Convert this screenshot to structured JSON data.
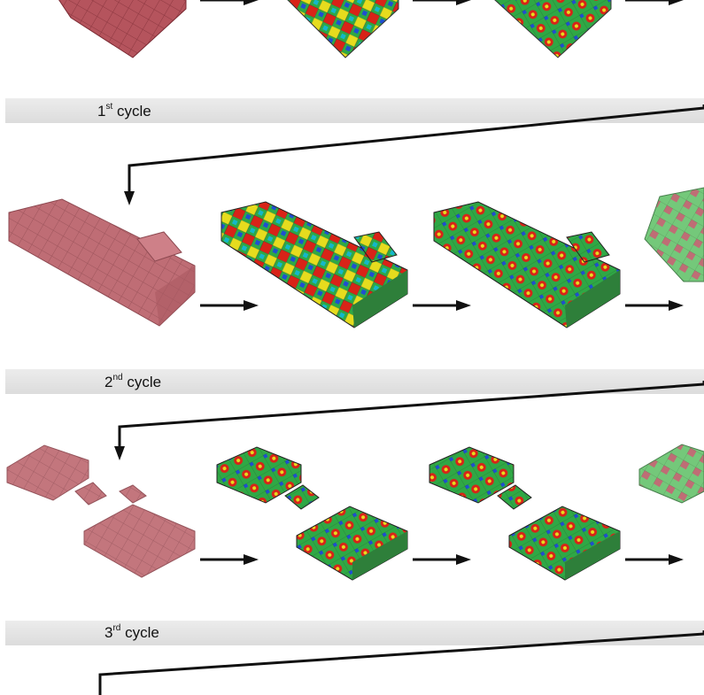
{
  "cycles": [
    {
      "ordinal": "1",
      "suffix": "st",
      "word": "cycle"
    },
    {
      "ordinal": "2",
      "suffix": "nd",
      "word": "cycle"
    },
    {
      "ordinal": "3",
      "suffix": "rd",
      "word": "cycle"
    }
  ],
  "colors": {
    "mesh_red": "#a8454f",
    "stress_blue": "#1f4fd1",
    "stress_green": "#2fa845",
    "stress_yellow": "#e6dc1e",
    "stress_red": "#d82318",
    "pruned_green": "#3aa64a",
    "band": "#e2e2e2",
    "arrow": "#111111"
  }
}
